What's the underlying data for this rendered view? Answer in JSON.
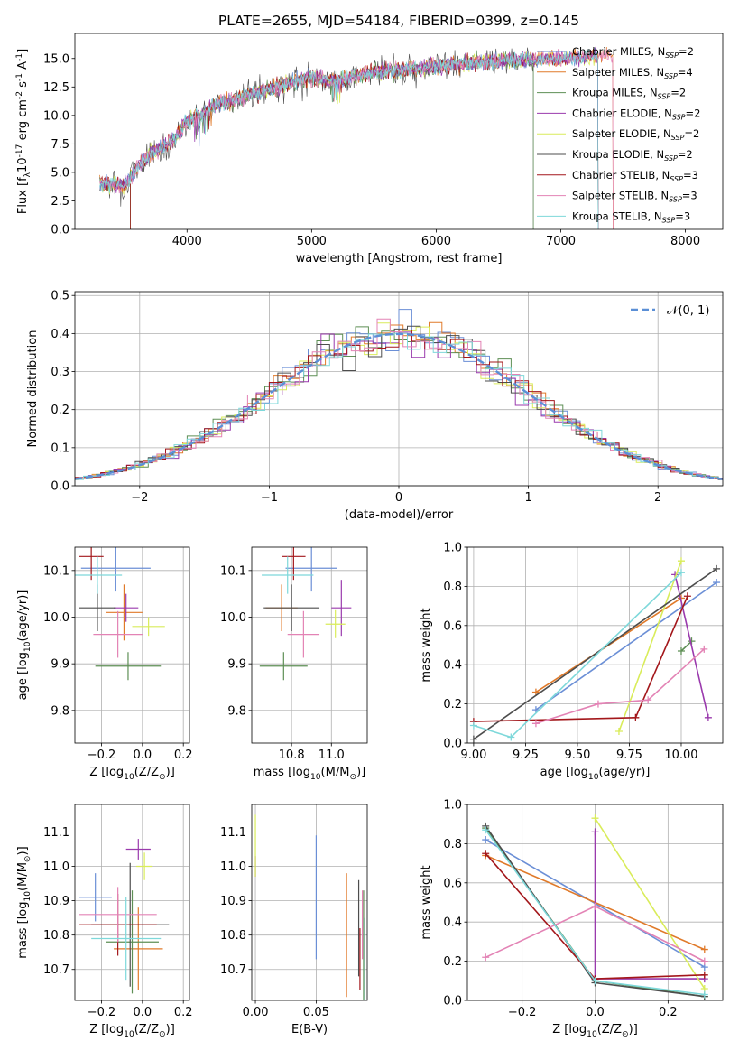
{
  "colors": [
    "#6b8fd6",
    "#e07a2a",
    "#5e8f55",
    "#9a3aad",
    "#d9ec5a",
    "#4d4d4d",
    "#a3171b",
    "#e383b5",
    "#7ed8da"
  ],
  "chart_data": [
    {
      "type": "line",
      "title": "PLATE=2655, MJD=54184, FIBERID=0399, z=0.145",
      "xlabel": "wavelength [Angstrom, rest frame]",
      "ylabel": "Flux [f$_\\lambda$10$^{-17}$ erg cm$^{-2}$ s$^{-1}$ A$^{-1}$]",
      "xlim": [
        3100,
        8300
      ],
      "ylim": [
        0,
        17.2
      ],
      "xticks": [
        "4000",
        "5000",
        "6000",
        "7000",
        "8000"
      ],
      "yticks": [
        "0.0",
        "2.5",
        "5.0",
        "7.5",
        "10.0",
        "12.5",
        "15.0"
      ],
      "legend_position": "upper-right",
      "legend": [
        {
          "label": "Chabrier MILES, N",
          "sub": "SSP",
          "suffix": "=2"
        },
        {
          "label": "Salpeter MILES, N",
          "sub": "SSP",
          "suffix": "=4"
        },
        {
          "label": "Kroupa MILES, N",
          "sub": "SSP",
          "suffix": "=2"
        },
        {
          "label": "Chabrier ELODIE, N",
          "sub": "SSP",
          "suffix": "=2"
        },
        {
          "label": "Salpeter ELODIE, N",
          "sub": "SSP",
          "suffix": "=2"
        },
        {
          "label": "Kroupa ELODIE, N",
          "sub": "SSP",
          "suffix": "=2"
        },
        {
          "label": "Chabrier STELIB, N",
          "sub": "SSP",
          "suffix": "=3"
        },
        {
          "label": "Salpeter STELIB, N",
          "sub": "SSP",
          "suffix": "=3"
        },
        {
          "label": "Kroupa STELIB, N",
          "sub": "SSP",
          "suffix": "=3"
        }
      ],
      "spectrum_shape": {
        "x": [
          3300,
          3500,
          3600,
          3700,
          3800,
          3900,
          4000,
          4100,
          4200,
          4500,
          4800,
          5000,
          5200,
          5500,
          6000,
          6500,
          7000,
          7300
        ],
        "y": [
          4.0,
          3.8,
          5.5,
          6.5,
          7.2,
          8.0,
          9.5,
          10.0,
          10.8,
          11.8,
          12.8,
          13.3,
          13.0,
          13.8,
          14.3,
          14.8,
          15.0,
          15.2
        ]
      },
      "series_cutoff_x": [
        7300,
        7420,
        6780,
        7300,
        7300,
        6780,
        7300,
        7420,
        7300
      ],
      "grid": false
    },
    {
      "type": "histogram",
      "xlabel": "(data-model)/error",
      "ylabel": "Normed distribution",
      "xlim": [
        -2.5,
        2.5
      ],
      "ylim": [
        0,
        0.51
      ],
      "xticks": [
        "−2",
        "−1",
        "0",
        "1",
        "2"
      ],
      "yticks": [
        "0.0",
        "0.1",
        "0.2",
        "0.3",
        "0.4",
        "0.5"
      ],
      "legend": "𝒩(0, 1)",
      "legend_position": "upper-right",
      "grid": true
    },
    {
      "type": "errorbar",
      "xlabel": "Z [log$_{10}$(Z/Z$_\\odot$)]",
      "ylabel": "age  [log$_{10}$(age/yr)]",
      "xlim": [
        -0.33,
        0.23
      ],
      "ylim": [
        9.73,
        10.15
      ],
      "xticks": [
        "−0.2",
        "0.0",
        "0.2"
      ],
      "yticks": [
        "9.8",
        "9.9",
        "10.0",
        "10.1"
      ],
      "x": [
        -0.13,
        -0.09,
        -0.07,
        -0.08,
        0.03,
        -0.22,
        -0.25,
        -0.12,
        -0.22
      ],
      "xerr": [
        0.17,
        0.09,
        0.16,
        0.06,
        0.08,
        0.09,
        0.06,
        0.12,
        0.12
      ],
      "y": [
        10.105,
        10.01,
        9.895,
        10.02,
        9.98,
        10.02,
        10.13,
        9.963,
        10.09
      ],
      "yerr": [
        0.05,
        0.06,
        0.03,
        0.03,
        0.02,
        0.05,
        0.05,
        0.05,
        0.04
      ],
      "grid": true
    },
    {
      "type": "errorbar",
      "xlabel": "mass [log$_{10}$(M/M$_\\odot$)]",
      "ylabel": "",
      "xlim": [
        10.6,
        11.18
      ],
      "ylim": [
        9.73,
        10.15
      ],
      "xticks": [
        "10.8",
        "11.0"
      ],
      "yticks": [
        "9.8",
        "9.9",
        "10.0",
        "10.1"
      ],
      "x": [
        10.9,
        10.75,
        10.76,
        11.05,
        11.02,
        10.8,
        10.81,
        10.86,
        10.78
      ],
      "xerr": [
        0.13,
        0.08,
        0.12,
        0.05,
        0.05,
        0.14,
        0.06,
        0.08,
        0.13
      ],
      "y": [
        10.105,
        10.02,
        9.895,
        10.02,
        9.985,
        10.02,
        10.13,
        9.963,
        10.09
      ],
      "yerr": [
        0.05,
        0.05,
        0.03,
        0.06,
        0.03,
        0.05,
        0.05,
        0.05,
        0.04
      ],
      "grid": true
    },
    {
      "type": "line",
      "xlabel": "age  [log$_{10}$(age/yr)]",
      "ylabel": "mass weight",
      "xlim": [
        8.97,
        10.2
      ],
      "ylim": [
        0,
        1.0
      ],
      "xticks": [
        "9.00",
        "9.25",
        "9.50",
        "9.75",
        "10.00"
      ],
      "yticks": [
        "0.0",
        "0.2",
        "0.4",
        "0.6",
        "0.8",
        "1.0"
      ],
      "series": [
        {
          "x": [
            9.3,
            10.17
          ],
          "y": [
            0.17,
            0.82
          ]
        },
        {
          "x": [
            9.3,
            10.0
          ],
          "y": [
            0.26,
            0.74
          ]
        },
        {
          "x": [
            10.0,
            10.05
          ],
          "y": [
            0.47,
            0.52
          ]
        },
        {
          "x": [
            9.97,
            10.13
          ],
          "y": [
            0.86,
            0.13
          ]
        },
        {
          "x": [
            9.7,
            10.0
          ],
          "y": [
            0.06,
            0.93
          ]
        },
        {
          "x": [
            9.0,
            10.17
          ],
          "y": [
            0.02,
            0.89
          ]
        },
        {
          "x": [
            9.0,
            9.78,
            10.03
          ],
          "y": [
            0.11,
            0.13,
            0.75
          ]
        },
        {
          "x": [
            9.3,
            9.6,
            9.84,
            10.11
          ],
          "y": [
            0.1,
            0.2,
            0.22,
            0.48
          ]
        },
        {
          "x": [
            9.0,
            9.18,
            10.0
          ],
          "y": [
            0.09,
            0.03,
            0.87
          ]
        }
      ],
      "grid": true
    },
    {
      "type": "errorbar",
      "xlabel": "Z [log$_{10}$(Z/Z$_\\odot$)]",
      "ylabel": "mass [log$_{10}$(M/M$_\\odot$)]",
      "xlim": [
        -0.33,
        0.23
      ],
      "ylim": [
        10.61,
        11.18
      ],
      "xticks": [
        "−0.2",
        "0.0",
        "0.2"
      ],
      "yticks": [
        "10.7",
        "10.8",
        "10.9",
        "11.0",
        "11.1"
      ],
      "x": [
        -0.23,
        -0.02,
        -0.05,
        -0.02,
        0.01,
        -0.06,
        -0.12,
        -0.12,
        -0.08
      ],
      "xerr": [
        0.08,
        0.12,
        0.13,
        0.06,
        0.04,
        0.19,
        0.19,
        0.19,
        0.17
      ],
      "y": [
        10.91,
        10.76,
        10.78,
        11.05,
        11.0,
        10.83,
        10.83,
        10.86,
        10.79
      ],
      "yerr": [
        0.07,
        0.12,
        0.15,
        0.03,
        0.04,
        0.18,
        0.09,
        0.08,
        0.12
      ],
      "grid": true
    },
    {
      "type": "errorbar",
      "xlabel": "E(B-V)",
      "ylabel": "",
      "xlim": [
        -0.003,
        0.092
      ],
      "ylim": [
        10.61,
        11.18
      ],
      "xticks": [
        "0.00",
        "0.05"
      ],
      "yticks": [
        "10.7",
        "10.8",
        "10.9",
        "11.0",
        "11.1"
      ],
      "x": [
        0.05,
        0.075,
        0.089,
        0.0,
        0.0,
        0.085,
        0.086,
        0.088,
        0.09
      ],
      "xerr": [
        0,
        0,
        0,
        0,
        0,
        0,
        0,
        0,
        0
      ],
      "y": [
        10.91,
        10.8,
        10.77,
        11.0,
        11.06,
        10.82,
        10.73,
        10.83,
        10.73
      ],
      "yerr": [
        0.18,
        0.18,
        0.16,
        0.03,
        0.09,
        0.14,
        0.09,
        0.1,
        0.12
      ],
      "grid": true
    },
    {
      "type": "line",
      "xlabel": "Z [log$_{10}$(Z/Z$_\\odot$)]",
      "ylabel": "mass weight",
      "xlim": [
        -0.35,
        0.35
      ],
      "ylim": [
        0,
        1.0
      ],
      "xticks": [
        "−0.2",
        "0.0",
        "0.2"
      ],
      "yticks": [
        "0.0",
        "0.2",
        "0.4",
        "0.6",
        "0.8",
        "1.0"
      ],
      "series": [
        {
          "x": [
            -0.3,
            0.3
          ],
          "y": [
            0.82,
            0.17
          ]
        },
        {
          "x": [
            -0.3,
            0.3
          ],
          "y": [
            0.74,
            0.26
          ]
        },
        {
          "x": [
            -0.3,
            0.0,
            0.3
          ],
          "y": [
            0.88,
            0.1,
            0.02
          ]
        },
        {
          "x": [
            0.0,
            0.0,
            0.3
          ],
          "y": [
            0.86,
            0.11,
            0.11
          ]
        },
        {
          "x": [
            0.0,
            0.3
          ],
          "y": [
            0.93,
            0.06
          ]
        },
        {
          "x": [
            -0.3,
            0.0,
            0.3
          ],
          "y": [
            0.89,
            0.09,
            0.02
          ]
        },
        {
          "x": [
            -0.3,
            0.0,
            0.3
          ],
          "y": [
            0.75,
            0.11,
            0.13
          ]
        },
        {
          "x": [
            -0.3,
            0.0,
            0.3
          ],
          "y": [
            0.22,
            0.48,
            0.2
          ]
        },
        {
          "x": [
            -0.3,
            0.0,
            0.3
          ],
          "y": [
            0.87,
            0.1,
            0.03
          ]
        }
      ],
      "grid": true
    }
  ]
}
